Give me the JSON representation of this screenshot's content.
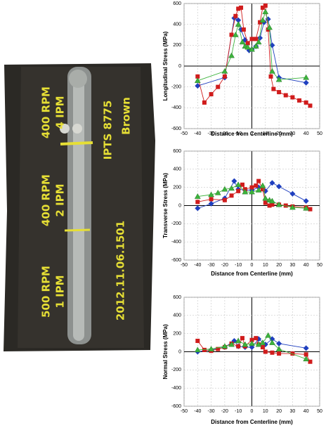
{
  "photo": {
    "annotations": [
      "400 RPM",
      "4 IPM",
      "400 RPM",
      "2 IPM",
      "500 RPM",
      "1 IPM",
      "2012.11.06.1501",
      "IPTS 8775",
      "Brown"
    ]
  },
  "chart_data": [
    {
      "type": "line",
      "y_label": "Longitudinal Stress (MPa)",
      "x_label": "Distance from Centerline (mm)",
      "xlim": [
        -50,
        50
      ],
      "ylim": [
        -600,
        600
      ],
      "xticks": [
        -50,
        -40,
        -30,
        -20,
        -10,
        0,
        10,
        20,
        30,
        40,
        50
      ],
      "yticks": [
        -600,
        -400,
        -200,
        0,
        200,
        400,
        600
      ],
      "grid": true,
      "series": [
        {
          "color": "#1f3fbf",
          "marker": "diamond",
          "x": [
            -40,
            -20,
            -13,
            -10,
            -8,
            -5,
            -2,
            0,
            3,
            6,
            9,
            12,
            15,
            20,
            40
          ],
          "values": [
            -190,
            -110,
            460,
            440,
            350,
            250,
            150,
            160,
            190,
            270,
            420,
            450,
            200,
            -110,
            -160
          ]
        },
        {
          "color": "#d01c1c",
          "marker": "square",
          "x": [
            -40,
            -35,
            -30,
            -25,
            -20,
            -15,
            -12,
            -10,
            -8,
            -6,
            -3,
            0,
            3,
            6,
            8,
            10,
            12,
            14,
            16,
            20,
            25,
            30,
            35,
            40,
            43
          ],
          "values": [
            -100,
            -350,
            -270,
            -200,
            -100,
            300,
            480,
            550,
            560,
            350,
            220,
            260,
            260,
            420,
            560,
            580,
            350,
            -100,
            -220,
            -250,
            -280,
            -300,
            -330,
            -350,
            -380
          ]
        },
        {
          "color": "#3cb33c",
          "marker": "triangle",
          "x": [
            -40,
            -20,
            -15,
            -12,
            -10,
            -7,
            -5,
            -3,
            0,
            3,
            5,
            8,
            10,
            13,
            15,
            20,
            40
          ],
          "values": [
            -140,
            -50,
            100,
            300,
            400,
            230,
            190,
            180,
            160,
            190,
            230,
            440,
            520,
            370,
            -50,
            -130,
            -110
          ]
        }
      ]
    },
    {
      "type": "line",
      "y_label": "Transverse Stress (MPa)",
      "x_label": "Distance from Centerline (mm)",
      "xlim": [
        -50,
        50
      ],
      "ylim": [
        -600,
        600
      ],
      "xticks": [
        -50,
        -40,
        -30,
        -20,
        -10,
        0,
        10,
        20,
        30,
        40,
        50
      ],
      "yticks": [
        -600,
        -400,
        -200,
        0,
        200,
        400,
        600
      ],
      "grid": true,
      "series": [
        {
          "color": "#1f3fbf",
          "marker": "diamond",
          "x": [
            -40,
            -30,
            -20,
            -13,
            -10,
            -5,
            0,
            5,
            10,
            15,
            20,
            30,
            40
          ],
          "values": [
            -30,
            20,
            80,
            270,
            180,
            170,
            170,
            200,
            160,
            250,
            210,
            130,
            50
          ]
        },
        {
          "color": "#d01c1c",
          "marker": "square",
          "x": [
            -40,
            -30,
            -20,
            -15,
            -10,
            -7,
            -5,
            0,
            3,
            5,
            8,
            10,
            13,
            15,
            20,
            25,
            30,
            40,
            43
          ],
          "values": [
            40,
            70,
            60,
            110,
            160,
            230,
            180,
            200,
            220,
            270,
            180,
            30,
            0,
            10,
            10,
            0,
            -10,
            -20,
            -40
          ]
        },
        {
          "color": "#3cb33c",
          "marker": "triangle",
          "x": [
            -40,
            -30,
            -25,
            -20,
            -15,
            -10,
            -5,
            0,
            5,
            8,
            10,
            13,
            15,
            20,
            30,
            40
          ],
          "values": [
            100,
            120,
            140,
            180,
            190,
            230,
            150,
            150,
            170,
            220,
            80,
            60,
            50,
            10,
            -20,
            -30
          ]
        }
      ]
    },
    {
      "type": "line",
      "y_label": "Normal Stress (MPa)",
      "x_label": "Distance from Centerline (mm)",
      "xlim": [
        -50,
        50
      ],
      "ylim": [
        -600,
        600
      ],
      "xticks": [
        -50,
        -40,
        -30,
        -20,
        -10,
        0,
        10,
        20,
        30,
        40,
        50
      ],
      "yticks": [
        -600,
        -400,
        -200,
        0,
        200,
        400,
        600
      ],
      "grid": true,
      "series": [
        {
          "color": "#1f3fbf",
          "marker": "diamond",
          "x": [
            -40,
            -30,
            -20,
            -13,
            -10,
            -5,
            0,
            5,
            10,
            15,
            20,
            40
          ],
          "values": [
            0,
            20,
            50,
            120,
            60,
            50,
            50,
            140,
            80,
            140,
            90,
            40
          ]
        },
        {
          "color": "#d01c1c",
          "marker": "square",
          "x": [
            -40,
            -35,
            -30,
            -25,
            -20,
            -15,
            -10,
            -7,
            -5,
            0,
            3,
            5,
            8,
            10,
            15,
            20,
            30,
            40,
            43
          ],
          "values": [
            120,
            20,
            10,
            30,
            50,
            90,
            60,
            150,
            60,
            130,
            150,
            80,
            50,
            0,
            -10,
            -20,
            -20,
            -30,
            -110
          ]
        },
        {
          "color": "#3cb33c",
          "marker": "triangle",
          "x": [
            -40,
            -30,
            -20,
            -15,
            -10,
            -5,
            0,
            5,
            8,
            12,
            15,
            20,
            40
          ],
          "values": [
            20,
            30,
            60,
            80,
            120,
            80,
            90,
            80,
            100,
            180,
            100,
            30,
            -80
          ]
        }
      ]
    }
  ]
}
